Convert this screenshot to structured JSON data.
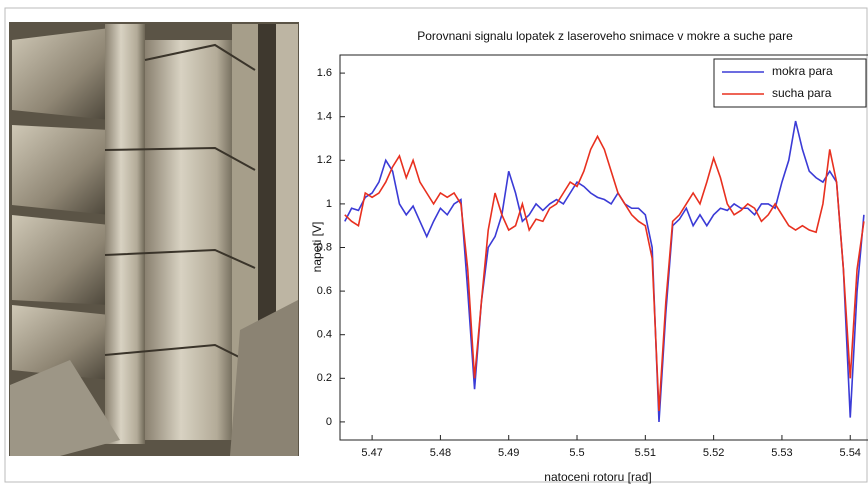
{
  "chart_data": {
    "type": "line",
    "title": "Porovnani signalu lopatek z laseroveho snimace v mokre a suche pare",
    "x_label": "natoceni  rotoru [rad]",
    "y_label": "napeti [V]",
    "x": [
      5.466,
      5.467,
      5.468,
      5.469,
      5.47,
      5.471,
      5.472,
      5.473,
      5.474,
      5.475,
      5.476,
      5.477,
      5.478,
      5.479,
      5.48,
      5.481,
      5.482,
      5.483,
      5.484,
      5.485,
      5.486,
      5.487,
      5.488,
      5.489,
      5.49,
      5.491,
      5.492,
      5.493,
      5.494,
      5.495,
      5.496,
      5.497,
      5.498,
      5.499,
      5.5,
      5.501,
      5.502,
      5.503,
      5.504,
      5.505,
      5.506,
      5.507,
      5.508,
      5.509,
      5.51,
      5.511,
      5.512,
      5.513,
      5.514,
      5.515,
      5.516,
      5.517,
      5.518,
      5.519,
      5.52,
      5.521,
      5.522,
      5.523,
      5.524,
      5.525,
      5.526,
      5.527,
      5.528,
      5.529,
      5.53,
      5.531,
      5.532,
      5.533,
      5.534,
      5.535,
      5.536,
      5.537,
      5.538,
      5.539,
      5.54,
      5.541,
      5.542
    ],
    "series": [
      {
        "name": "mokra para",
        "color": "#3b3bd6",
        "values": [
          0.92,
          0.98,
          0.97,
          1.03,
          1.05,
          1.1,
          1.2,
          1.15,
          1.0,
          0.95,
          0.99,
          0.92,
          0.85,
          0.92,
          0.98,
          0.95,
          1.0,
          1.02,
          0.6,
          0.15,
          0.55,
          0.8,
          0.85,
          0.95,
          1.15,
          1.05,
          0.92,
          0.95,
          1.0,
          0.97,
          1.0,
          1.02,
          1.0,
          1.05,
          1.1,
          1.08,
          1.05,
          1.03,
          1.02,
          1.0,
          1.05,
          1.0,
          0.98,
          0.98,
          0.95,
          0.8,
          0.0,
          0.5,
          0.9,
          0.93,
          0.98,
          0.9,
          0.95,
          0.9,
          0.95,
          0.98,
          0.97,
          1.0,
          0.98,
          0.98,
          0.95,
          1.0,
          1.0,
          0.98,
          1.1,
          1.2,
          1.38,
          1.25,
          1.15,
          1.12,
          1.1,
          1.15,
          1.1,
          0.7,
          0.02,
          0.6,
          0.95
        ]
      },
      {
        "name": "sucha para",
        "color": "#e8301f",
        "values": [
          0.95,
          0.92,
          0.9,
          1.05,
          1.03,
          1.05,
          1.1,
          1.17,
          1.22,
          1.12,
          1.2,
          1.1,
          1.05,
          1.0,
          1.05,
          1.03,
          1.05,
          1.0,
          0.7,
          0.2,
          0.55,
          0.88,
          1.05,
          0.95,
          0.88,
          0.9,
          1.0,
          0.88,
          0.93,
          0.92,
          0.98,
          1.0,
          1.05,
          1.1,
          1.08,
          1.15,
          1.25,
          1.31,
          1.25,
          1.15,
          1.05,
          1.0,
          0.95,
          0.92,
          0.9,
          0.75,
          0.05,
          0.55,
          0.92,
          0.95,
          1.0,
          1.05,
          1.0,
          1.1,
          1.21,
          1.12,
          1.0,
          0.95,
          0.97,
          1.0,
          0.98,
          0.92,
          0.95,
          1.0,
          0.95,
          0.9,
          0.88,
          0.9,
          0.88,
          0.87,
          1.0,
          1.25,
          1.1,
          0.7,
          0.2,
          0.7,
          0.92
        ]
      }
    ],
    "xlim": [
      5.4653,
      5.5426
    ],
    "ylim": [
      -0.083,
      1.683
    ],
    "xticks": [
      5.47,
      5.48,
      5.49,
      5.5,
      5.51,
      5.52,
      5.53,
      5.54
    ],
    "yticks": [
      0,
      0.2,
      0.4,
      0.6,
      0.8,
      1,
      1.2,
      1.4,
      1.6
    ],
    "legend": "top-right"
  }
}
